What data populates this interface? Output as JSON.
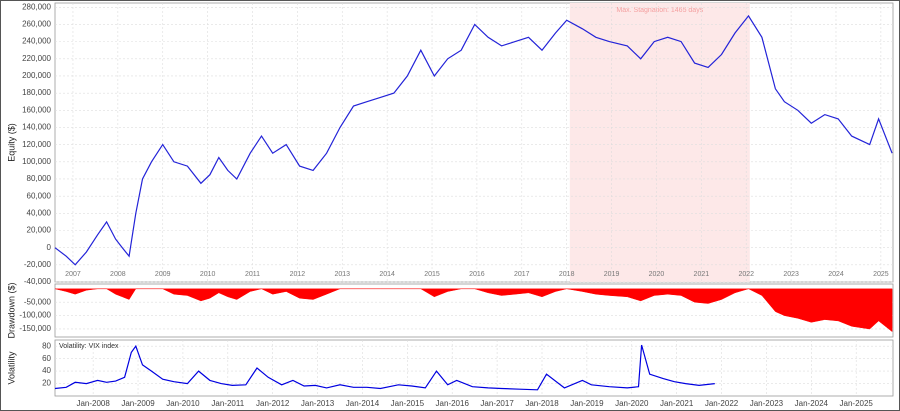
{
  "chart_data": [
    {
      "type": "line",
      "ylabel": "Equity ($)",
      "annotation": "Max. Stagnation: 1465 days",
      "shade": [
        2018.62,
        2022.63
      ],
      "grid": true,
      "xlim": [
        2007.15,
        2025.82
      ],
      "ylim": [
        -40000,
        285000
      ],
      "xtick_position": "inside",
      "xticks": [
        {
          "value": 2007.55,
          "label": "2007"
        },
        {
          "value": 2008.55,
          "label": "2008"
        },
        {
          "value": 2009.55,
          "label": "2009"
        },
        {
          "value": 2010.55,
          "label": "2010"
        },
        {
          "value": 2011.55,
          "label": "2011"
        },
        {
          "value": 2012.55,
          "label": "2012"
        },
        {
          "value": 2013.55,
          "label": "2013"
        },
        {
          "value": 2014.55,
          "label": "2014"
        },
        {
          "value": 2015.55,
          "label": "2015"
        },
        {
          "value": 2016.55,
          "label": "2016"
        },
        {
          "value": 2017.55,
          "label": "2017"
        },
        {
          "value": 2018.55,
          "label": "2018"
        },
        {
          "value": 2019.55,
          "label": "2019"
        },
        {
          "value": 2020.55,
          "label": "2020"
        },
        {
          "value": 2021.55,
          "label": "2021"
        },
        {
          "value": 2022.55,
          "label": "2022"
        },
        {
          "value": 2023.55,
          "label": "2023"
        },
        {
          "value": 2024.55,
          "label": "2024"
        },
        {
          "value": 2025.55,
          "label": "2025"
        }
      ],
      "yticks": [
        {
          "value": -40000,
          "label": "-40,000"
        },
        {
          "value": -20000,
          "label": "-20,000"
        },
        0,
        {
          "value": 20000,
          "label": "20,000"
        },
        {
          "value": 40000,
          "label": "40,000"
        },
        {
          "value": 60000,
          "label": "60,000"
        },
        {
          "value": 80000,
          "label": "80,000"
        },
        {
          "value": 100000,
          "label": "100,000"
        },
        {
          "value": 120000,
          "label": "120,000"
        },
        {
          "value": 140000,
          "label": "140,000"
        },
        {
          "value": 160000,
          "label": "160,000"
        },
        {
          "value": 180000,
          "label": "180,000"
        },
        {
          "value": 200000,
          "label": "200,000"
        },
        {
          "value": 220000,
          "label": "220,000"
        },
        {
          "value": 240000,
          "label": "240,000"
        },
        {
          "value": 260000,
          "label": "260,000"
        },
        {
          "value": 280000,
          "label": "280,000"
        }
      ],
      "x": [
        2007.15,
        2007.4,
        2007.6,
        2007.85,
        2008.1,
        2008.3,
        2008.5,
        2008.65,
        2008.8,
        2008.95,
        2009.1,
        2009.3,
        2009.55,
        2009.8,
        2010.1,
        2010.4,
        2010.6,
        2010.8,
        2011.0,
        2011.2,
        2011.5,
        2011.75,
        2012.0,
        2012.3,
        2012.6,
        2012.9,
        2013.2,
        2013.5,
        2013.8,
        2014.1,
        2014.4,
        2014.7,
        2015.0,
        2015.3,
        2015.6,
        2015.9,
        2016.2,
        2016.5,
        2016.8,
        2017.1,
        2017.4,
        2017.7,
        2018.0,
        2018.3,
        2018.55,
        2018.9,
        2019.2,
        2019.5,
        2019.9,
        2020.2,
        2020.5,
        2020.8,
        2021.1,
        2021.4,
        2021.7,
        2022.0,
        2022.3,
        2022.6,
        2022.9,
        2023.2,
        2023.4,
        2023.7,
        2024.0,
        2024.3,
        2024.6,
        2024.9,
        2025.3,
        2025.5,
        2025.8
      ],
      "color": "#2323d8",
      "values": [
        0,
        -10000,
        -20000,
        -5000,
        15000,
        30000,
        10000,
        0,
        -10000,
        40000,
        80000,
        100000,
        120000,
        100000,
        95000,
        75000,
        85000,
        105000,
        90000,
        80000,
        110000,
        130000,
        110000,
        120000,
        95000,
        90000,
        110000,
        140000,
        165000,
        170000,
        175000,
        180000,
        200000,
        230000,
        200000,
        220000,
        230000,
        260000,
        245000,
        235000,
        240000,
        245000,
        230000,
        250000,
        265000,
        255000,
        245000,
        240000,
        235000,
        220000,
        240000,
        245000,
        240000,
        215000,
        210000,
        225000,
        250000,
        270000,
        245000,
        185000,
        170000,
        160000,
        145000,
        155000,
        150000,
        130000,
        120000,
        150000,
        110000
      ]
    },
    {
      "type": "area",
      "ylabel": "Drawdown ($)",
      "grid": true,
      "xlim": [
        2007.15,
        2025.82
      ],
      "ylim": [
        -180000,
        18000
      ],
      "yticks": [
        {
          "value": -150000,
          "label": "-150,000"
        },
        {
          "value": -100000,
          "label": "-100,000"
        },
        {
          "value": -50000,
          "label": "-50,000"
        }
      ],
      "x": [
        2007.15,
        2007.4,
        2007.6,
        2007.85,
        2008.1,
        2008.3,
        2008.5,
        2008.65,
        2008.8,
        2008.95,
        2009.1,
        2009.3,
        2009.55,
        2009.8,
        2010.1,
        2010.4,
        2010.6,
        2010.8,
        2011.0,
        2011.2,
        2011.5,
        2011.75,
        2012.0,
        2012.3,
        2012.6,
        2012.9,
        2013.2,
        2013.5,
        2013.8,
        2014.1,
        2014.4,
        2014.7,
        2015.0,
        2015.3,
        2015.6,
        2015.9,
        2016.2,
        2016.5,
        2016.8,
        2017.1,
        2017.4,
        2017.7,
        2018.0,
        2018.3,
        2018.55,
        2018.9,
        2019.2,
        2019.5,
        2019.9,
        2020.2,
        2020.5,
        2020.8,
        2021.1,
        2021.4,
        2021.7,
        2022.0,
        2022.3,
        2022.6,
        2022.9,
        2023.2,
        2023.4,
        2023.7,
        2024.0,
        2024.3,
        2024.6,
        2024.9,
        2025.3,
        2025.5,
        2025.8
      ],
      "color": "#ff0000",
      "values": [
        0,
        -10000,
        -20000,
        -5000,
        0,
        0,
        -20000,
        -30000,
        -40000,
        0,
        0,
        0,
        0,
        -20000,
        -25000,
        -45000,
        -35000,
        -15000,
        -30000,
        -40000,
        -10000,
        0,
        -20000,
        -10000,
        -35000,
        -40000,
        -20000,
        0,
        0,
        0,
        0,
        0,
        0,
        0,
        -30000,
        -10000,
        0,
        0,
        -15000,
        -25000,
        -20000,
        -15000,
        -30000,
        -10000,
        0,
        -10000,
        -20000,
        -25000,
        -30000,
        -45000,
        -25000,
        -20000,
        -25000,
        -50000,
        -55000,
        -40000,
        -15000,
        0,
        -25000,
        -85000,
        -100000,
        -110000,
        -125000,
        -115000,
        -120000,
        -140000,
        -150000,
        -120000,
        -160000
      ]
    },
    {
      "type": "line",
      "ylabel": "Volatility",
      "label": "Volatility: VIX index",
      "grid": true,
      "xlim": [
        2007.15,
        2025.82
      ],
      "ylim": [
        0,
        90
      ],
      "xtick_position": "below",
      "xticks": [
        {
          "value": 2008,
          "label": "Jan-2008"
        },
        {
          "value": 2009,
          "label": "Jan-2009"
        },
        {
          "value": 2010,
          "label": "Jan-2010"
        },
        {
          "value": 2011,
          "label": "Jan-2011"
        },
        {
          "value": 2012,
          "label": "Jan-2012"
        },
        {
          "value": 2013,
          "label": "Jan-2013"
        },
        {
          "value": 2014,
          "label": "Jan-2014"
        },
        {
          "value": 2015,
          "label": "Jan-2015"
        },
        {
          "value": 2016,
          "label": "Jan-2016"
        },
        {
          "value": 2017,
          "label": "Jan-2017"
        },
        {
          "value": 2018,
          "label": "Jan-2018"
        },
        {
          "value": 2019,
          "label": "Jan-2019"
        },
        {
          "value": 2020,
          "label": "Jan-2020"
        },
        {
          "value": 2021,
          "label": "Jan-2021"
        },
        {
          "value": 2022,
          "label": "Jan-2022"
        },
        {
          "value": 2023,
          "label": "Jan-2023"
        },
        {
          "value": 2024,
          "label": "Jan-2024"
        },
        {
          "value": 2025,
          "label": "Jan-2025"
        }
      ],
      "yticks": [
        20,
        40,
        60,
        80
      ],
      "x": [
        2007.15,
        2007.4,
        2007.6,
        2007.85,
        2008.1,
        2008.3,
        2008.5,
        2008.7,
        2008.85,
        2008.95,
        2009.1,
        2009.3,
        2009.55,
        2009.8,
        2010.1,
        2010.35,
        2010.6,
        2010.85,
        2011.1,
        2011.4,
        2011.65,
        2011.9,
        2012.2,
        2012.45,
        2012.7,
        2012.95,
        2013.2,
        2013.5,
        2013.8,
        2014.1,
        2014.4,
        2014.8,
        2015.1,
        2015.4,
        2015.65,
        2015.9,
        2016.1,
        2016.45,
        2016.8,
        2017.1,
        2017.5,
        2017.9,
        2018.1,
        2018.5,
        2018.9,
        2019.1,
        2019.5,
        2019.9,
        2020.15,
        2020.22,
        2020.4,
        2020.7,
        2020.95,
        2021.2,
        2021.5,
        2021.85
      ],
      "color": "#0000e0",
      "values": [
        12,
        14,
        22,
        20,
        25,
        22,
        24,
        30,
        70,
        80,
        50,
        40,
        27,
        23,
        20,
        40,
        25,
        20,
        17,
        18,
        45,
        30,
        18,
        25,
        16,
        17,
        13,
        18,
        14,
        14,
        12,
        18,
        16,
        13,
        40,
        18,
        25,
        15,
        13,
        12,
        11,
        10,
        35,
        13,
        25,
        18,
        15,
        13,
        15,
        82,
        35,
        28,
        23,
        20,
        17,
        20
      ]
    }
  ]
}
